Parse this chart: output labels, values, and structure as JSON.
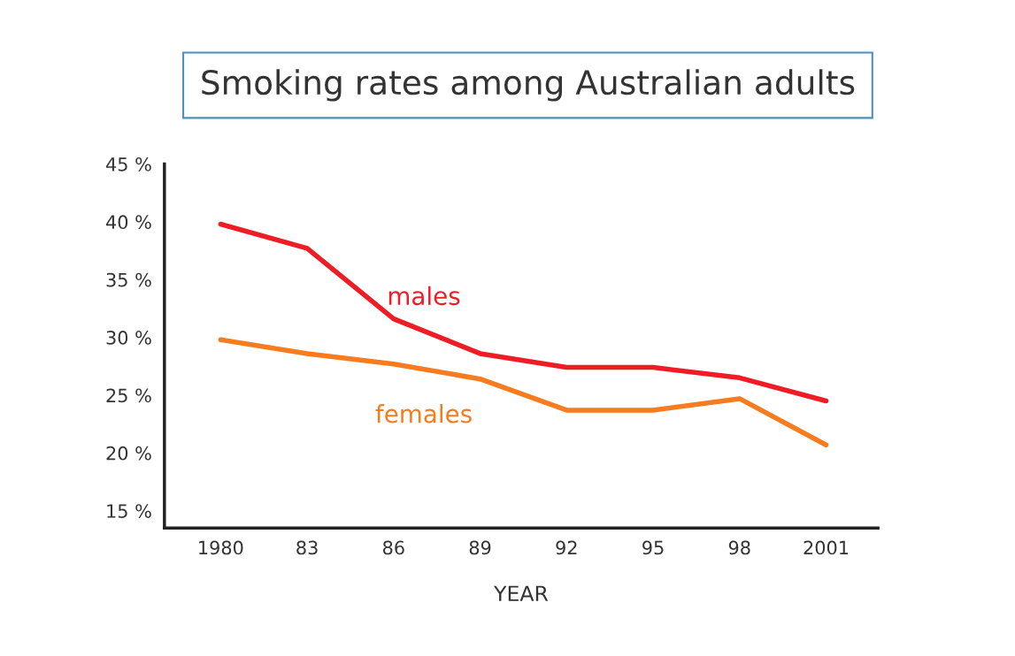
{
  "chart_data": {
    "type": "line",
    "title": "Smoking rates among Australian adults",
    "xlabel": "YEAR",
    "categories": [
      "1980",
      "83",
      "86",
      "89",
      "92",
      "95",
      "98",
      "2001"
    ],
    "series": [
      {
        "name": "males",
        "color": "#ee1c25",
        "values": [
          39.8,
          37.7,
          31.6,
          28.6,
          27.4,
          27.4,
          26.5,
          24.5
        ]
      },
      {
        "name": "females",
        "color": "#f77b1f",
        "values": [
          29.8,
          28.6,
          27.7,
          26.4,
          23.7,
          23.7,
          24.7,
          20.7
        ]
      }
    ],
    "ylim": [
      13.5,
      45
    ],
    "yticks": [
      {
        "value": 15,
        "label": "15 %"
      },
      {
        "value": 20,
        "label": "20 %"
      },
      {
        "value": 25,
        "label": "25 %"
      },
      {
        "value": 30,
        "label": "30 %"
      },
      {
        "value": 35,
        "label": "35 %"
      },
      {
        "value": 40,
        "label": "40 %"
      },
      {
        "value": 45,
        "label": "45 %"
      }
    ],
    "grid": false,
    "legend": false,
    "marker": "none",
    "line_style": "solid"
  }
}
